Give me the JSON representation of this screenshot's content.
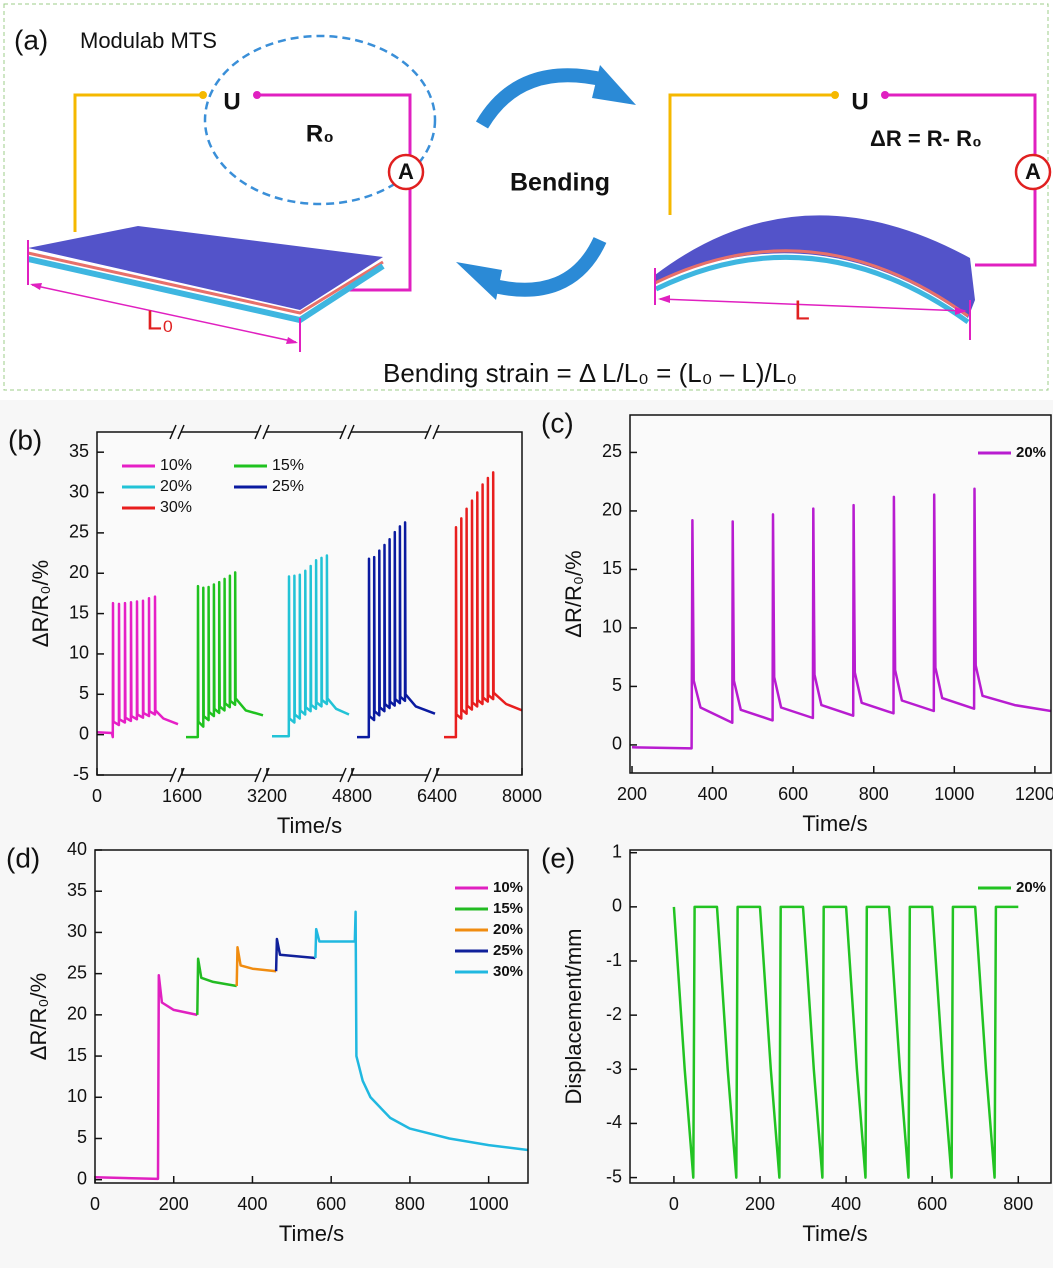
{
  "diagram": {
    "panel": "(a)",
    "instrument": "Modulab MTS",
    "u_left": "U",
    "r0": "R₀",
    "a_left": "A",
    "action": "Bending",
    "u_right": "U",
    "delta_r": "ΔR = R- R₀",
    "a_right": "A",
    "l0": "L₀",
    "l": "L",
    "formula": "Bending strain = Δ L/L₀ = (L₀ – L)/L₀"
  },
  "chart_data": [
    {
      "type": "line",
      "panel": "(b)",
      "x_label": "Time/s",
      "y_label": "ΔR/R₀/%",
      "xlim": [
        0,
        8000
      ],
      "ylim": [
        -5,
        37.5
      ],
      "xticks": [
        0,
        1600,
        3200,
        4800,
        6400,
        8000
      ],
      "yticks": [
        -5,
        0,
        5,
        10,
        15,
        20,
        25,
        30,
        35
      ],
      "axis_break": true,
      "legend": "upper left",
      "legend_columns": 2,
      "series": [
        {
          "name": "10%",
          "color": "#e61fc6",
          "x": [
            0,
            280,
            298,
            301,
            309,
            413,
            414,
            422,
            526,
            527,
            535,
            639,
            640,
            648,
            752,
            753,
            761,
            865,
            866,
            874,
            978,
            979,
            987,
            1091,
            1092,
            1100,
            1250,
            1525
          ],
          "values": [
            0.3,
            0.2,
            -0.3,
            16.3,
            1.6,
            1.2,
            16.2,
            1.9,
            1.5,
            16.3,
            2.1,
            1.7,
            16.4,
            2.3,
            1.9,
            16.5,
            2.5,
            2.1,
            16.6,
            2.7,
            2.3,
            16.9,
            2.9,
            2.5,
            17.1,
            3.0,
            2.0,
            1.3
          ]
        },
        {
          "name": "15%",
          "color": "#1fc21f",
          "x": [
            1675,
            1898,
            1901,
            1909,
            2000,
            2001,
            2009,
            2100,
            2101,
            2109,
            2200,
            2201,
            2209,
            2300,
            2301,
            2309,
            2400,
            2401,
            2409,
            2500,
            2501,
            2509,
            2600,
            2601,
            2609,
            2800,
            3125
          ],
          "values": [
            -0.3,
            -0.3,
            18.4,
            1.6,
            1.0,
            18.2,
            2.3,
            1.8,
            18.3,
            2.8,
            2.3,
            18.6,
            3.2,
            2.7,
            18.9,
            3.5,
            3.0,
            19.3,
            3.9,
            3.4,
            19.7,
            4.2,
            3.7,
            20.1,
            4.5,
            3.0,
            2.4
          ]
        },
        {
          "name": "20%",
          "color": "#22c3d6",
          "x": [
            3294,
            3611,
            3614,
            3622,
            3715,
            3716,
            3724,
            3817,
            3818,
            3826,
            3919,
            3920,
            3928,
            4021,
            4022,
            4030,
            4123,
            4124,
            4132,
            4225,
            4226,
            4234,
            4327,
            4328,
            4336,
            4500,
            4744
          ],
          "values": [
            -0.2,
            -0.2,
            19.6,
            2.0,
            1.5,
            19.7,
            2.5,
            2.0,
            19.8,
            3.0,
            2.5,
            20.3,
            3.4,
            2.9,
            20.9,
            3.7,
            3.2,
            21.6,
            4.0,
            3.5,
            21.9,
            4.3,
            3.8,
            22.2,
            4.5,
            3.2,
            2.5
          ]
        },
        {
          "name": "25%",
          "color": "#0a1aa0",
          "x": [
            4894,
            5117,
            5120,
            5128,
            5216,
            5217,
            5225,
            5313,
            5314,
            5322,
            5410,
            5411,
            5419,
            5507,
            5508,
            5516,
            5604,
            5605,
            5613,
            5701,
            5702,
            5710,
            5798,
            5799,
            5807,
            6000,
            6362
          ],
          "values": [
            -0.3,
            -0.3,
            21.8,
            2.3,
            1.8,
            22.0,
            2.9,
            2.4,
            22.8,
            3.4,
            2.9,
            23.5,
            3.8,
            3.3,
            24.2,
            4.1,
            3.6,
            25.1,
            4.4,
            3.9,
            25.8,
            4.7,
            4.2,
            26.3,
            5.0,
            3.5,
            2.6
          ]
        },
        {
          "name": "30%",
          "color": "#e81e1e",
          "x": [
            6532,
            6755,
            6758,
            6766,
            6857,
            6858,
            6866,
            6957,
            6958,
            6966,
            7057,
            7058,
            7066,
            7157,
            7158,
            7166,
            7257,
            7258,
            7266,
            7357,
            7358,
            7366,
            7457,
            7458,
            7466,
            7700,
            8000
          ],
          "values": [
            -0.3,
            -0.3,
            25.7,
            2.5,
            2.0,
            26.8,
            3.1,
            2.6,
            28.0,
            3.6,
            3.1,
            29.0,
            4.0,
            3.5,
            30.0,
            4.3,
            3.8,
            31.0,
            4.6,
            4.1,
            31.8,
            4.9,
            4.4,
            32.5,
            5.2,
            3.8,
            3.0
          ]
        }
      ]
    },
    {
      "type": "line",
      "panel": "(c)",
      "x_label": "Time/s",
      "y_label": "ΔR/R₀/%",
      "xlim": [
        195,
        1240
      ],
      "ylim": [
        -2.4,
        28.2
      ],
      "xticks": [
        200,
        400,
        600,
        800,
        1000,
        1200
      ],
      "yticks": [
        0,
        5,
        10,
        15,
        20,
        25
      ],
      "legend": "upper right",
      "legend_columns": 1,
      "series": [
        {
          "name": "20%",
          "color": "#b81cd0",
          "x": [
            200,
            348,
            350,
            353,
            370,
            449,
            450,
            453,
            470,
            549,
            550,
            553,
            570,
            649,
            650,
            653,
            670,
            749,
            750,
            753,
            770,
            849,
            850,
            853,
            870,
            949,
            950,
            953,
            970,
            1049,
            1050,
            1053,
            1070,
            1150,
            1240
          ],
          "values": [
            -0.2,
            -0.3,
            19.2,
            5.5,
            3.2,
            1.9,
            19.1,
            5.5,
            3.0,
            2.1,
            19.7,
            5.8,
            3.2,
            2.3,
            20.2,
            6.0,
            3.4,
            2.5,
            20.5,
            6.2,
            3.6,
            2.7,
            21.2,
            6.4,
            3.8,
            2.9,
            21.4,
            6.6,
            4.0,
            3.1,
            21.9,
            6.8,
            4.2,
            3.4,
            2.9
          ]
        }
      ]
    },
    {
      "type": "line",
      "panel": "(d)",
      "x_label": "Time/s",
      "y_label": "ΔR/R₀/%",
      "xlim": [
        0,
        1100
      ],
      "ylim": [
        -0.4,
        40
      ],
      "xticks": [
        0,
        200,
        400,
        600,
        800,
        1000
      ],
      "yticks": [
        0,
        5,
        10,
        15,
        20,
        25,
        30,
        35,
        40
      ],
      "legend": "upper right",
      "legend_columns": 1,
      "series": [
        {
          "name": "10%",
          "color": "#e020c0",
          "x": [
            0,
            160,
            162,
            170,
            200,
            260
          ],
          "values": [
            0.3,
            0.1,
            24.8,
            21.5,
            20.6,
            20.0
          ]
        },
        {
          "name": "15%",
          "color": "#22bb22",
          "x": [
            260,
            262,
            270,
            300,
            360
          ],
          "values": [
            20.0,
            26.8,
            24.5,
            24.0,
            23.5
          ]
        },
        {
          "name": "20%",
          "color": "#f08c10",
          "x": [
            360,
            362,
            370,
            400,
            460
          ],
          "values": [
            23.5,
            28.2,
            26.0,
            25.6,
            25.3
          ]
        },
        {
          "name": "25%",
          "color": "#10209a",
          "x": [
            460,
            462,
            470,
            560
          ],
          "values": [
            25.3,
            29.2,
            27.3,
            26.9
          ]
        },
        {
          "name": "30%",
          "color": "#20b8e0",
          "x": [
            560,
            562,
            570,
            660,
            662,
            664,
            680,
            700,
            750,
            800,
            900,
            1000,
            1100
          ],
          "values": [
            26.9,
            30.4,
            28.9,
            28.9,
            32.5,
            15.0,
            12.0,
            10.0,
            7.5,
            6.2,
            5.0,
            4.2,
            3.6
          ]
        }
      ]
    },
    {
      "type": "line",
      "panel": "(e)",
      "x_label": "Time/s",
      "y_label": "Displacement/mm",
      "xlim": [
        -102,
        876
      ],
      "ylim": [
        -5.1,
        1.05
      ],
      "xticks": [
        0,
        200,
        400,
        600,
        800
      ],
      "yticks": [
        -5,
        -4,
        -3,
        -2,
        -1,
        0,
        1
      ],
      "legend": "upper right",
      "legend_columns": 1,
      "series": [
        {
          "name": "20%",
          "color": "#22c322",
          "x": [
            0,
            10,
            25,
            45,
            48,
            100,
            110,
            125,
            145,
            148,
            200,
            210,
            225,
            245,
            248,
            300,
            310,
            325,
            345,
            348,
            400,
            410,
            425,
            445,
            448,
            500,
            510,
            525,
            545,
            548,
            600,
            610,
            625,
            645,
            648,
            700,
            710,
            725,
            745,
            748,
            800
          ],
          "values": [
            0,
            -1.2,
            -3,
            -5,
            0,
            0,
            -1.2,
            -3,
            -5,
            0,
            0,
            -1.2,
            -3,
            -5,
            0,
            0,
            -1.2,
            -3,
            -5,
            0,
            0,
            -1.2,
            -3,
            -5,
            0,
            0,
            -1.2,
            -3,
            -5,
            0,
            0,
            -1.2,
            -3,
            -5,
            0,
            0,
            -1.2,
            -3,
            -5,
            0,
            0
          ]
        }
      ]
    }
  ]
}
